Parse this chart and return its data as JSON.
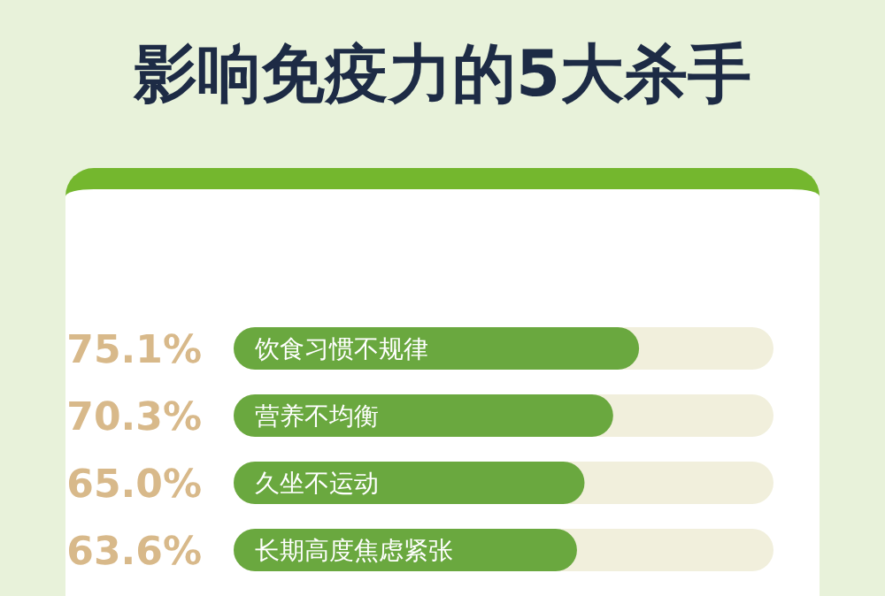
{
  "chart_data": {
    "type": "bar",
    "orientation": "horizontal",
    "title": "影响免疫力的5大杀手",
    "categories": [
      null,
      "饮食习惯不规律",
      "营养不均衡",
      "久坐不运动",
      "长期高度焦虑紧张"
    ],
    "values": [
      null,
      75.1,
      70.3,
      65.0,
      63.6
    ],
    "value_labels": [
      null,
      "75.1%",
      "70.3%",
      "65.0%",
      "63.6%"
    ],
    "color": "#6aa83f",
    "xlim": [
      0,
      100
    ],
    "tick_labels": false,
    "grid": false,
    "legend": false
  }
}
